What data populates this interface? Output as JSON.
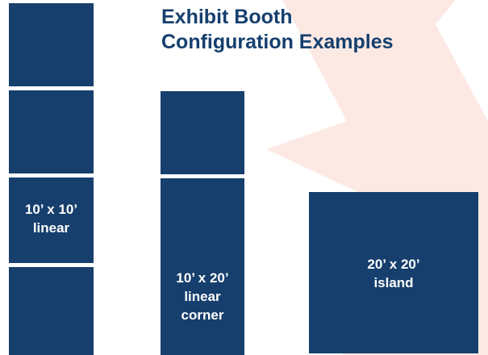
{
  "title": {
    "line1": "Exhibit Booth",
    "line2": "Configuration Examples"
  },
  "booths": {
    "linear": {
      "label_line1": "10’ x 10’",
      "label_line2": "linear"
    },
    "linear_corner": {
      "label_line1": "10’ x 20’",
      "label_line2": "linear",
      "label_line3": "corner"
    },
    "island": {
      "label_line1": "20’ x 20’",
      "label_line2": "island"
    }
  },
  "colors": {
    "booth_fill": "#163f6d",
    "title": "#153f6e",
    "star_background": "#fde9e4",
    "label_text": "#ffffff"
  }
}
